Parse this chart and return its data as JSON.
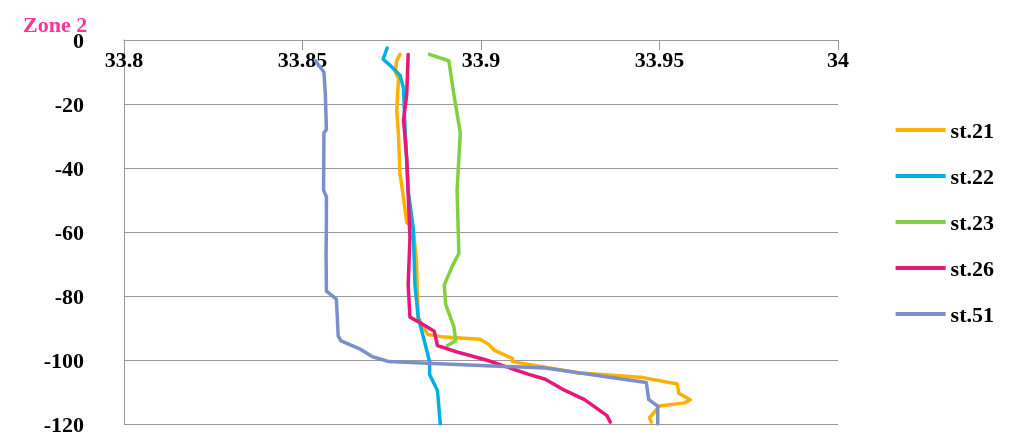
{
  "chart_data": {
    "type": "line",
    "title": "Zone 2",
    "xlim": [
      33.8,
      34
    ],
    "xticks": [
      33.8,
      33.85,
      33.9,
      33.95,
      34
    ],
    "ylim": [
      -120,
      0
    ],
    "yticks": [
      -120,
      -100,
      -80,
      -60,
      -40,
      -20,
      0
    ],
    "grid": "y",
    "legend": "right",
    "marker": "none",
    "line_style": "solid",
    "series": [
      {
        "name": "st.21",
        "color": "#ffb000",
        "x": [
          33.8773,
          33.8764,
          33.876,
          33.8769,
          33.8764,
          33.8769,
          33.8773,
          33.8775,
          33.8792,
          33.881,
          33.8819,
          33.8824,
          33.8837,
          33.8851,
          33.8888,
          33.8997,
          33.902,
          33.9038,
          33.9088,
          33.9088,
          33.9271,
          33.9454,
          33.955,
          33.9554,
          33.9586,
          33.957,
          33.95,
          33.9472,
          33.9477
        ],
        "values": [
          -4.5,
          -6.5,
          -10,
          -12,
          -22,
          -30,
          -42,
          -43,
          -57,
          -58.7,
          -68.7,
          -86.6,
          -89.6,
          -92,
          -92.7,
          -93.5,
          -95,
          -97,
          -99.5,
          -100.5,
          -104,
          -105.5,
          -107.5,
          -110.4,
          -112.4,
          -113.4,
          -114.4,
          -118,
          -119.4
        ]
      },
      {
        "name": "st.22",
        "color": "#00b0e0",
        "x": [
          33.8737,
          33.8726,
          33.8746,
          33.8773,
          33.8783,
          33.8787,
          33.8796,
          33.881,
          33.8815,
          33.8824,
          33.8847,
          33.8856,
          33.8856,
          33.8878,
          33.8886
        ],
        "values": [
          -2.5,
          -6,
          -8,
          -11,
          -15,
          -27,
          -47,
          -58.7,
          -76.6,
          -86.6,
          -96.5,
          -100.5,
          -104.5,
          -109.5,
          -120
        ]
      },
      {
        "name": "st.23",
        "color": "#80d040",
        "x": [
          33.8856,
          33.891,
          33.8924,
          33.8942,
          33.8933,
          33.8938,
          33.892,
          33.8897,
          33.8901,
          33.8924,
          33.8929,
          33.8906
        ],
        "values": [
          -4.5,
          -6.5,
          -17,
          -29,
          -47,
          -66.7,
          -70.6,
          -76.6,
          -82.6,
          -89.6,
          -94,
          -95.5
        ]
      },
      {
        "name": "st.26",
        "color": "#e8177a",
        "x": [
          33.8796,
          33.8792,
          33.8783,
          33.8792,
          33.8801,
          33.8796,
          33.8801,
          33.8833,
          33.8869,
          33.8878,
          33.8933,
          33.9015,
          33.9134,
          33.918,
          33.9235,
          33.929,
          33.9353,
          33.9362
        ],
        "values": [
          -4.5,
          -17,
          -25,
          -37,
          -61.7,
          -76.6,
          -86.6,
          -88.6,
          -91,
          -95.5,
          -97.5,
          -100,
          -104.5,
          -106,
          -109.5,
          -112.4,
          -117.4,
          -119.4
        ]
      },
      {
        "name": "st.51",
        "color": "#7b8fc8",
        "x": [
          33.8536,
          33.856,
          33.8564,
          33.8567,
          33.856,
          33.8559,
          33.8567,
          33.8567,
          33.8566,
          33.8567,
          33.8595,
          33.86,
          33.8608,
          33.866,
          33.8696,
          33.8742,
          33.885,
          33.913,
          33.918,
          33.936,
          33.9463,
          33.947,
          33.9495,
          33.9495
        ],
        "values": [
          -6.5,
          -10,
          -17,
          -28,
          -29,
          -47,
          -49,
          -57,
          -67,
          -78.5,
          -81,
          -92.5,
          -94,
          -96.5,
          -99,
          -100.5,
          -101,
          -102.3,
          -102.5,
          -105.4,
          -107,
          -112.4,
          -114.4,
          -120
        ]
      }
    ]
  }
}
